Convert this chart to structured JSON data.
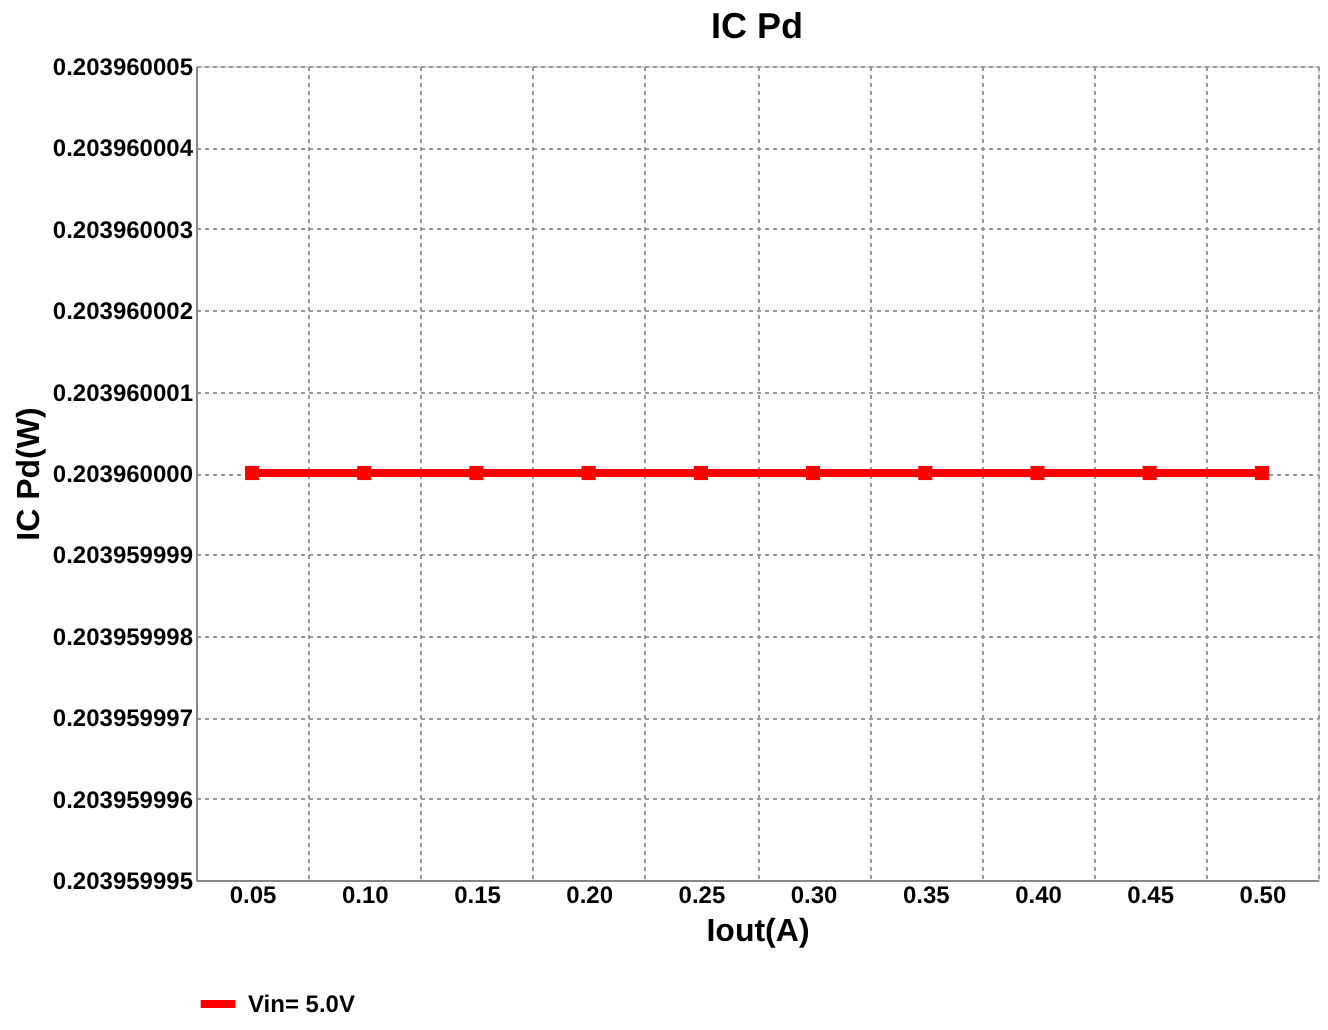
{
  "chart_data": {
    "type": "line",
    "title": "IC Pd",
    "xlabel": "Iout(A)",
    "ylabel": "IC Pd(W)",
    "categories": [
      "0.05",
      "0.10",
      "0.15",
      "0.20",
      "0.25",
      "0.30",
      "0.35",
      "0.40",
      "0.45",
      "0.50"
    ],
    "series": [
      {
        "name": "Vin= 5.0V",
        "color": "#ff0000",
        "values": [
          0.20396,
          0.20396,
          0.20396,
          0.20396,
          0.20396,
          0.20396,
          0.20396,
          0.20396,
          0.20396,
          0.20396
        ]
      }
    ],
    "ylim": [
      0.203959995,
      0.203960005
    ],
    "yticks": [
      0.203959995,
      0.203959996,
      0.203959997,
      0.203959998,
      0.203959999,
      {
        "value": 0.20396,
        "label": "0.203960000"
      },
      0.203960001,
      0.203960002,
      0.203960003,
      0.203960004,
      0.203960005
    ],
    "grid": true,
    "legend": "bottom",
    "marker": "square",
    "line_style": "solid"
  }
}
